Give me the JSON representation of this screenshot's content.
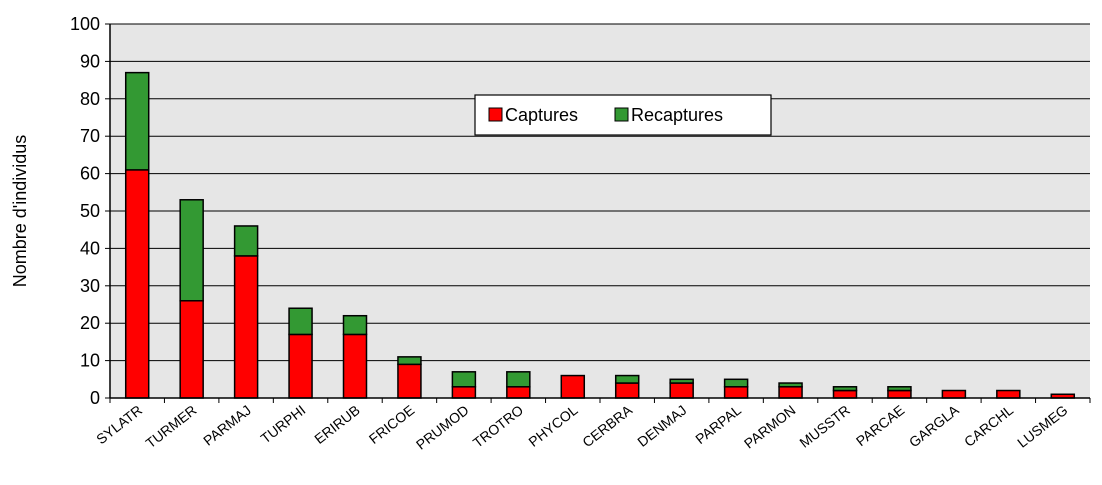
{
  "chart_data": {
    "type": "bar",
    "stacked": true,
    "title": "",
    "xlabel": "",
    "ylabel": "Nombre d'individus",
    "ylim": [
      0,
      100
    ],
    "yticks": [
      0,
      10,
      20,
      30,
      40,
      50,
      60,
      70,
      80,
      90,
      100
    ],
    "grid": true,
    "legend_position": "top-center",
    "categories": [
      "SYLATR",
      "TURMER",
      "PARMAJ",
      "TURPHI",
      "ERIRUB",
      "FRICOE",
      "PRUMOD",
      "TROTRO",
      "PHYCOL",
      "CERBRA",
      "DENMAJ",
      "PARPAL",
      "PARMON",
      "MUSSTR",
      "PARCAE",
      "GARGLA",
      "CARCHL",
      "LUSMEG"
    ],
    "series": [
      {
        "name": "Captures",
        "color": "#ff0000",
        "values": [
          61,
          26,
          38,
          17,
          17,
          9,
          3,
          3,
          6,
          4,
          4,
          3,
          3,
          2,
          2,
          2,
          2,
          1
        ]
      },
      {
        "name": "Recaptures",
        "color": "#339933",
        "values": [
          26,
          27,
          8,
          7,
          5,
          2,
          4,
          4,
          0,
          2,
          1,
          2,
          1,
          1,
          1,
          0,
          0,
          0
        ]
      }
    ],
    "colors": {
      "plot_background": "#e6e6e6",
      "gridline": "#000000",
      "bar_outline": "#000000"
    }
  }
}
